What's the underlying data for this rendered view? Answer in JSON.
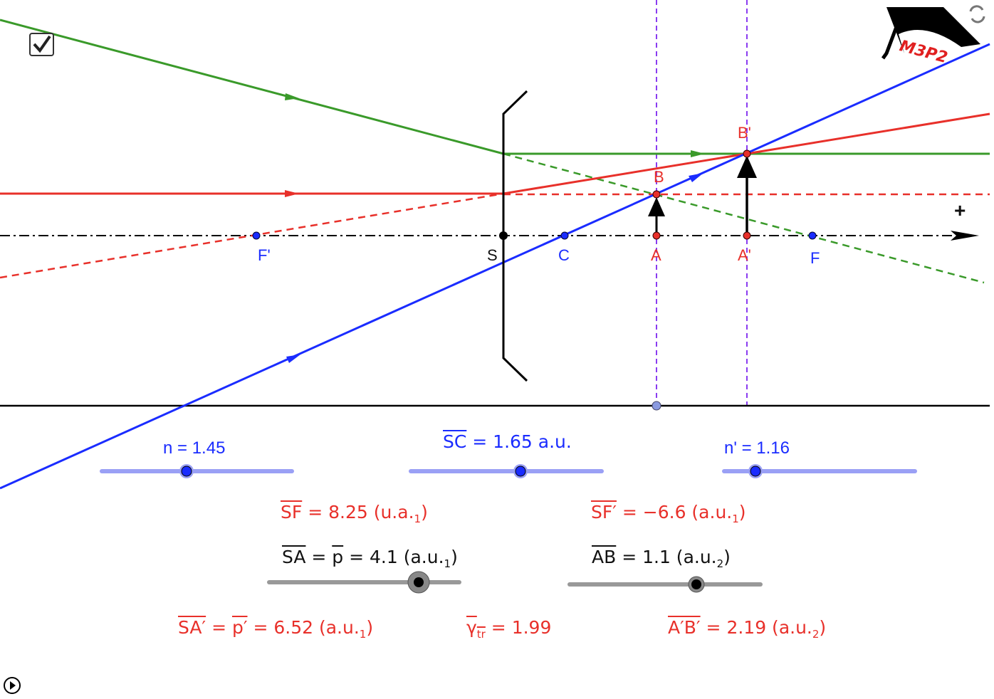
{
  "logo": {
    "text": "M3P2"
  },
  "icons": {
    "checkbox": "checkmark-icon",
    "refresh": "refresh-icon",
    "play": "play-icon"
  },
  "colors": {
    "ray_green": "#3a9a2a",
    "ray_red": "#e8302a",
    "ray_blue": "#1a2cff",
    "guide": "#8a3cf0",
    "slider_blue": "#9aa0f5",
    "slider_gray": "#999999"
  },
  "axis": {
    "plus": "+"
  },
  "points": {
    "F_prime": "F'",
    "S": "S",
    "C": "C",
    "A": "A",
    "A_prime": "A'",
    "F": "F",
    "B": "B",
    "B_prime": "B'"
  },
  "sliders": {
    "n": {
      "label": "n = 1.45",
      "value": 1.45
    },
    "sc": {
      "label": "SC",
      "value_text": " = 1.65 a.u.",
      "value": 1.65
    },
    "n_prime": {
      "label": "n' = 1.16",
      "value": 1.16
    },
    "sa": {
      "label": "SA",
      "mid": " = ",
      "p": "p",
      "value_text": " = 4.1 (a.u.",
      "sub": "1",
      "close": ")",
      "value": 4.1
    },
    "ab": {
      "label": "AB",
      "value_text": " =  1.1 (a.u.",
      "sub": "2",
      "close": ")",
      "value": 1.1
    }
  },
  "results": {
    "sf": {
      "label": "SF",
      "value_text": " = 8.25 (u.a.",
      "sub": "1",
      "close": ")"
    },
    "sf_prime": {
      "label": "SF′",
      "value_text": " = −6.6 (a.u.",
      "sub": "1",
      "close": ")"
    },
    "sa_prime": {
      "label": "SA′",
      "mid": " = ",
      "p": "p′",
      "value_text": " = 6.52 (a.u.",
      "sub": "1",
      "close": ")"
    },
    "gamma": {
      "label": "γ",
      "sub": "tr",
      "value_text": " = 1.99"
    },
    "ab_prime": {
      "label": "A′B′",
      "value_text": " = 2.19 (a.u.",
      "sub": "2",
      "close": ")"
    }
  }
}
